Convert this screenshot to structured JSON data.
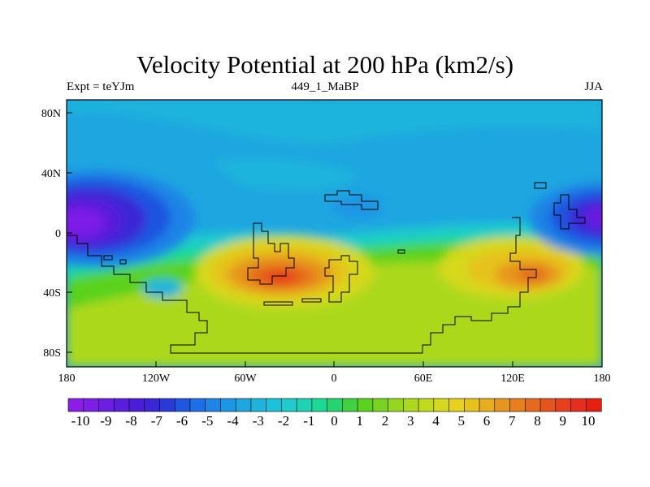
{
  "title": "Velocity Potential at 200 hPa (km2/s)",
  "subtitle_left": "Expt = teYJm",
  "subtitle_center": "449_1_MaBP",
  "subtitle_right": "JJA",
  "x_ticks": [
    "180",
    "120W",
    "60W",
    "0",
    "60E",
    "120E",
    "180"
  ],
  "y_ticks": [
    "80N",
    "40N",
    "0",
    "40S",
    "80S"
  ],
  "colorbar": {
    "labels": [
      "-10",
      "-9",
      "-8",
      "-7",
      "-6",
      "-5",
      "-4",
      "-3",
      "-2",
      "-1",
      "0",
      "1",
      "2",
      "3",
      "4",
      "5",
      "6",
      "7",
      "8",
      "9",
      "10"
    ],
    "colors": [
      "#8a1ee6",
      "#7d1ee6",
      "#6a1ee0",
      "#5a1edc",
      "#4a1ed8",
      "#3a28d6",
      "#2a3ad8",
      "#1f55e0",
      "#1e6ee6",
      "#1e84e6",
      "#1e96e6",
      "#1ea6e0",
      "#1eb4dc",
      "#1ec2d8",
      "#1ecccc",
      "#1ed2b4",
      "#1ed896",
      "#24d46e",
      "#40d040",
      "#5ad21e",
      "#78d41e",
      "#96d61e",
      "#acd81e",
      "#c2da1e",
      "#d6d81e",
      "#e6d21e",
      "#e6c21e",
      "#e6ae1e",
      "#e6961e",
      "#e6801e",
      "#e66a1e",
      "#e6541e",
      "#e6401e",
      "#e62e1e",
      "#e62010"
    ]
  },
  "colors": {
    "background": "#1ea6e0",
    "southern_band": "#acd81e"
  }
}
